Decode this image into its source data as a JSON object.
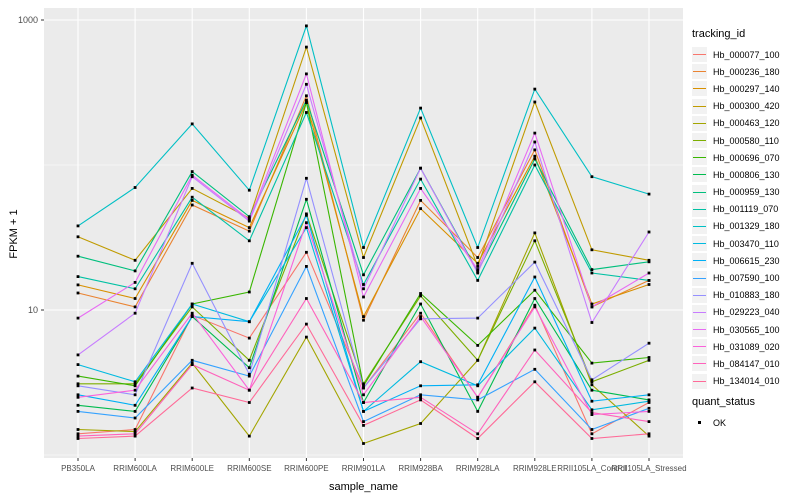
{
  "figure": {
    "y_axis_title": "FPKM + 1",
    "x_axis_title": "sample_name",
    "legend_title": "tracking_id",
    "legend2_title": "quant_status",
    "legend2_items": [
      {
        "label": "OK"
      }
    ],
    "colors": {
      "panel_bg": "#EBEBEB",
      "grid": "#FFFFFF",
      "tick_label": "#4D4D4D",
      "tick_mark": "#333333",
      "point": "#000000",
      "legend_key_bg": "#F2F2F2"
    }
  },
  "chart_data": {
    "type": "line",
    "yscale": "log10",
    "ylim": [
      1,
      1200
    ],
    "grid": {
      "major_y": [
        10,
        1000
      ],
      "minor_y": [
        1,
        100
      ],
      "vertical_major": true
    },
    "legend_position": "right",
    "yticks": [
      {
        "value": 1000,
        "label": "1000"
      },
      {
        "value": 10,
        "label": "10"
      }
    ],
    "title": "",
    "xlabel": "sample_name",
    "ylabel": "FPKM + 1",
    "categories": [
      "PB350LA",
      "RRIM600LA",
      "RRIM600LE",
      "RRIM600SE",
      "RRIM600PE",
      "RRIM901LA",
      "RRIM928BA",
      "RRIM928LA",
      "RRIM928LE",
      "RRII105LA_Control",
      "RRII105LA_Stressed"
    ],
    "series": [
      {
        "name": "Hb_000077_100",
        "color": "#F8766D",
        "values": [
          1.4,
          1.5,
          9.2,
          6.4,
          25,
          2.9,
          9.5,
          2.5,
          10.8,
          1.4,
          2.3
        ]
      },
      {
        "name": "Hb_000236_180",
        "color": "#EA8331",
        "values": [
          13.1,
          10.5,
          53,
          35,
          300,
          8.5,
          57,
          23,
          127,
          10.5,
          16
        ]
      },
      {
        "name": "Hb_000297_140",
        "color": "#D89000",
        "values": [
          14.9,
          12,
          57,
          37,
          270,
          9,
          50,
          21,
          115,
          11,
          15
        ]
      },
      {
        "name": "Hb_000300_420",
        "color": "#C09B00",
        "values": [
          32,
          22,
          69,
          43,
          650,
          23,
          211,
          20,
          272,
          26,
          22
        ]
      },
      {
        "name": "Hb_000463_120",
        "color": "#A3A500",
        "values": [
          1.5,
          1.45,
          4.3,
          1.35,
          6.5,
          1.2,
          1.65,
          4.5,
          34,
          3.05,
          1.35
        ]
      },
      {
        "name": "Hb_000580_110",
        "color": "#7CAE00",
        "values": [
          3.1,
          3.1,
          10.5,
          4.5,
          46,
          3.1,
          12.5,
          4.5,
          30,
          3.2,
          4.5
        ]
      },
      {
        "name": "Hb_000696_070",
        "color": "#39B600",
        "values": [
          3.5,
          3.0,
          11,
          13.3,
          270,
          3.0,
          13,
          5.7,
          13.7,
          4.3,
          4.7
        ]
      },
      {
        "name": "Hb_000806_130",
        "color": "#00BB4E",
        "values": [
          2.2,
          2.0,
          9.0,
          4.0,
          58,
          2.3,
          11,
          2.0,
          12,
          2.8,
          2.4
        ]
      },
      {
        "name": "Hb_000959_130",
        "color": "#00BF7D",
        "values": [
          23.5,
          18.6,
          90,
          44,
          280,
          17.5,
          95,
          18.4,
          110,
          19,
          21.5
        ]
      },
      {
        "name": "Hb_001119_070",
        "color": "#00C1A3",
        "values": [
          17,
          14,
          60,
          30,
          230,
          15,
          80,
          16,
          100,
          18,
          16
        ]
      },
      {
        "name": "Hb_001329_180",
        "color": "#00BFC4",
        "values": [
          38,
          70,
          192,
          67,
          910,
          27,
          247,
          27,
          334,
          83,
          63
        ]
      },
      {
        "name": "Hb_003470_110",
        "color": "#00BAE0",
        "values": [
          4.2,
          3.2,
          11,
          8.3,
          37,
          2.0,
          4.4,
          3.0,
          7.5,
          2.05,
          2.35
        ]
      },
      {
        "name": "Hb_006615_230",
        "color": "#00B0F6",
        "values": [
          2.6,
          2.2,
          9.0,
          8.3,
          45,
          2.0,
          3.0,
          3.05,
          16.9,
          2.35,
          2.6
        ]
      },
      {
        "name": "Hb_007590_100",
        "color": "#35A2FF",
        "values": [
          2.0,
          1.8,
          4.5,
          3.5,
          20,
          1.7,
          2.6,
          2.4,
          3.9,
          1.5,
          2.1
        ]
      },
      {
        "name": "Hb_010883_180",
        "color": "#9590FF",
        "values": [
          3.0,
          2.6,
          21,
          3.6,
          81,
          2.9,
          8.7,
          8.8,
          21.4,
          3.3,
          5.9
        ]
      },
      {
        "name": "Hb_029223_040",
        "color": "#C77CFF",
        "values": [
          4.9,
          9.5,
          83,
          41,
          360,
          14,
          95,
          18,
          144,
          8.2,
          34.5
        ]
      },
      {
        "name": "Hb_030565_100",
        "color": "#E76BF3",
        "values": [
          8.8,
          15.5,
          85,
          42,
          425,
          12.3,
          69,
          19,
          166,
          10.5,
          18
        ]
      },
      {
        "name": "Hb_031089_020",
        "color": "#FA62DB",
        "values": [
          2.5,
          2.8,
          9.5,
          2.8,
          40,
          2.6,
          9.0,
          2.5,
          10.5,
          1.9,
          2.0
        ]
      },
      {
        "name": "Hb_084147_010",
        "color": "#FF62BC",
        "values": [
          1.35,
          1.4,
          4.2,
          2.8,
          12,
          2.3,
          2.5,
          1.4,
          5.3,
          1.96,
          1.7
        ]
      },
      {
        "name": "Hb_134014_010",
        "color": "#FF6A98",
        "values": [
          1.3,
          1.35,
          2.9,
          2.3,
          8.0,
          1.6,
          2.4,
          1.3,
          3.2,
          1.3,
          1.4
        ]
      }
    ]
  }
}
